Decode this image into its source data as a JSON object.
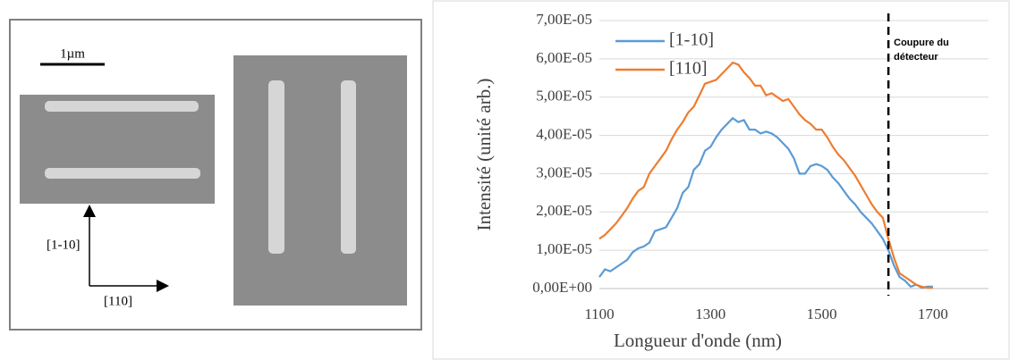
{
  "figure": {
    "scale_label": "1µm",
    "axis_label_vertical": "[1-10]",
    "axis_label_horizontal": "[110]"
  },
  "chart_data": {
    "type": "line",
    "y_label": "Intensité (unité arb.)",
    "x_label": "Longueur d'onde (nm)",
    "annotation": "Coupure du détecteur",
    "cutoff_x": 1620,
    "legend": "upper left",
    "grid": true,
    "xlim": [
      1100,
      1800
    ],
    "xticks": [
      1100,
      1300,
      1500,
      1700
    ],
    "ylim": [
      0,
      7e-05
    ],
    "yticks": [
      {
        "value": 0,
        "label": "0,00E+00"
      },
      {
        "value": 1e-05,
        "label": "1,00E-05"
      },
      {
        "value": 2e-05,
        "label": "2,00E-05"
      },
      {
        "value": 3e-05,
        "label": "3,00E-05"
      },
      {
        "value": 4e-05,
        "label": "4,00E-05"
      },
      {
        "value": 5e-05,
        "label": "5,00E-05"
      },
      {
        "value": 6e-05,
        "label": "6,00E-05"
      },
      {
        "value": 7e-05,
        "label": "7,00E-05"
      }
    ],
    "x": [
      1100,
      1110,
      1120,
      1130,
      1140,
      1150,
      1160,
      1170,
      1180,
      1190,
      1200,
      1210,
      1220,
      1230,
      1240,
      1250,
      1260,
      1270,
      1280,
      1290,
      1300,
      1310,
      1320,
      1330,
      1340,
      1350,
      1360,
      1370,
      1380,
      1390,
      1400,
      1410,
      1420,
      1430,
      1440,
      1450,
      1460,
      1470,
      1480,
      1490,
      1500,
      1510,
      1520,
      1530,
      1540,
      1550,
      1560,
      1570,
      1580,
      1590,
      1600,
      1610,
      1620,
      1630,
      1640,
      1650,
      1660,
      1670,
      1680,
      1690,
      1700
    ],
    "series": [
      {
        "name": "[1-10]",
        "color": "#5b9bd5",
        "values": [
          3e-06,
          5e-06,
          4.5e-06,
          5.5e-06,
          6.5e-06,
          7.5e-06,
          9.5e-06,
          1.05e-05,
          1.1e-05,
          1.2e-05,
          1.5e-05,
          1.55e-05,
          1.6e-05,
          1.85e-05,
          2.1e-05,
          2.5e-05,
          2.65e-05,
          3.1e-05,
          3.25e-05,
          3.6e-05,
          3.7e-05,
          3.95e-05,
          4.15e-05,
          4.3e-05,
          4.45e-05,
          4.35e-05,
          4.4e-05,
          4.15e-05,
          4.15e-05,
          4.05e-05,
          4.1e-05,
          4.05e-05,
          3.95e-05,
          3.8e-05,
          3.65e-05,
          3.4e-05,
          3e-05,
          3e-05,
          3.2e-05,
          3.25e-05,
          3.2e-05,
          3.1e-05,
          2.9e-05,
          2.75e-05,
          2.55e-05,
          2.35e-05,
          2.2e-05,
          2e-05,
          1.85e-05,
          1.7e-05,
          1.5e-05,
          1.3e-05,
          1e-05,
          6e-06,
          3e-06,
          2e-06,
          5e-07,
          1e-06,
          2e-07,
          5e-07,
          5e-07
        ]
      },
      {
        "name": "[110]",
        "color": "#ed7d31",
        "values": [
          1.3e-05,
          1.4e-05,
          1.55e-05,
          1.7e-05,
          1.9e-05,
          2.1e-05,
          2.35e-05,
          2.55e-05,
          2.65e-05,
          3e-05,
          3.2e-05,
          3.4e-05,
          3.6e-05,
          3.9e-05,
          4.15e-05,
          4.35e-05,
          4.6e-05,
          4.75e-05,
          5.05e-05,
          5.35e-05,
          5.4e-05,
          5.45e-05,
          5.6e-05,
          5.75e-05,
          5.9e-05,
          5.85e-05,
          5.65e-05,
          5.5e-05,
          5.3e-05,
          5.3e-05,
          5.05e-05,
          5.1e-05,
          5e-05,
          4.9e-05,
          4.95e-05,
          4.75e-05,
          4.55e-05,
          4.4e-05,
          4.3e-05,
          4.15e-05,
          4.15e-05,
          3.95e-05,
          3.7e-05,
          3.5e-05,
          3.35e-05,
          3.15e-05,
          2.95e-05,
          2.7e-05,
          2.45e-05,
          2.2e-05,
          2e-05,
          1.85e-05,
          1.3e-05,
          8e-06,
          4e-06,
          3e-06,
          2e-06,
          1e-06,
          5e-07,
          2e-07,
          2e-07
        ]
      }
    ]
  }
}
